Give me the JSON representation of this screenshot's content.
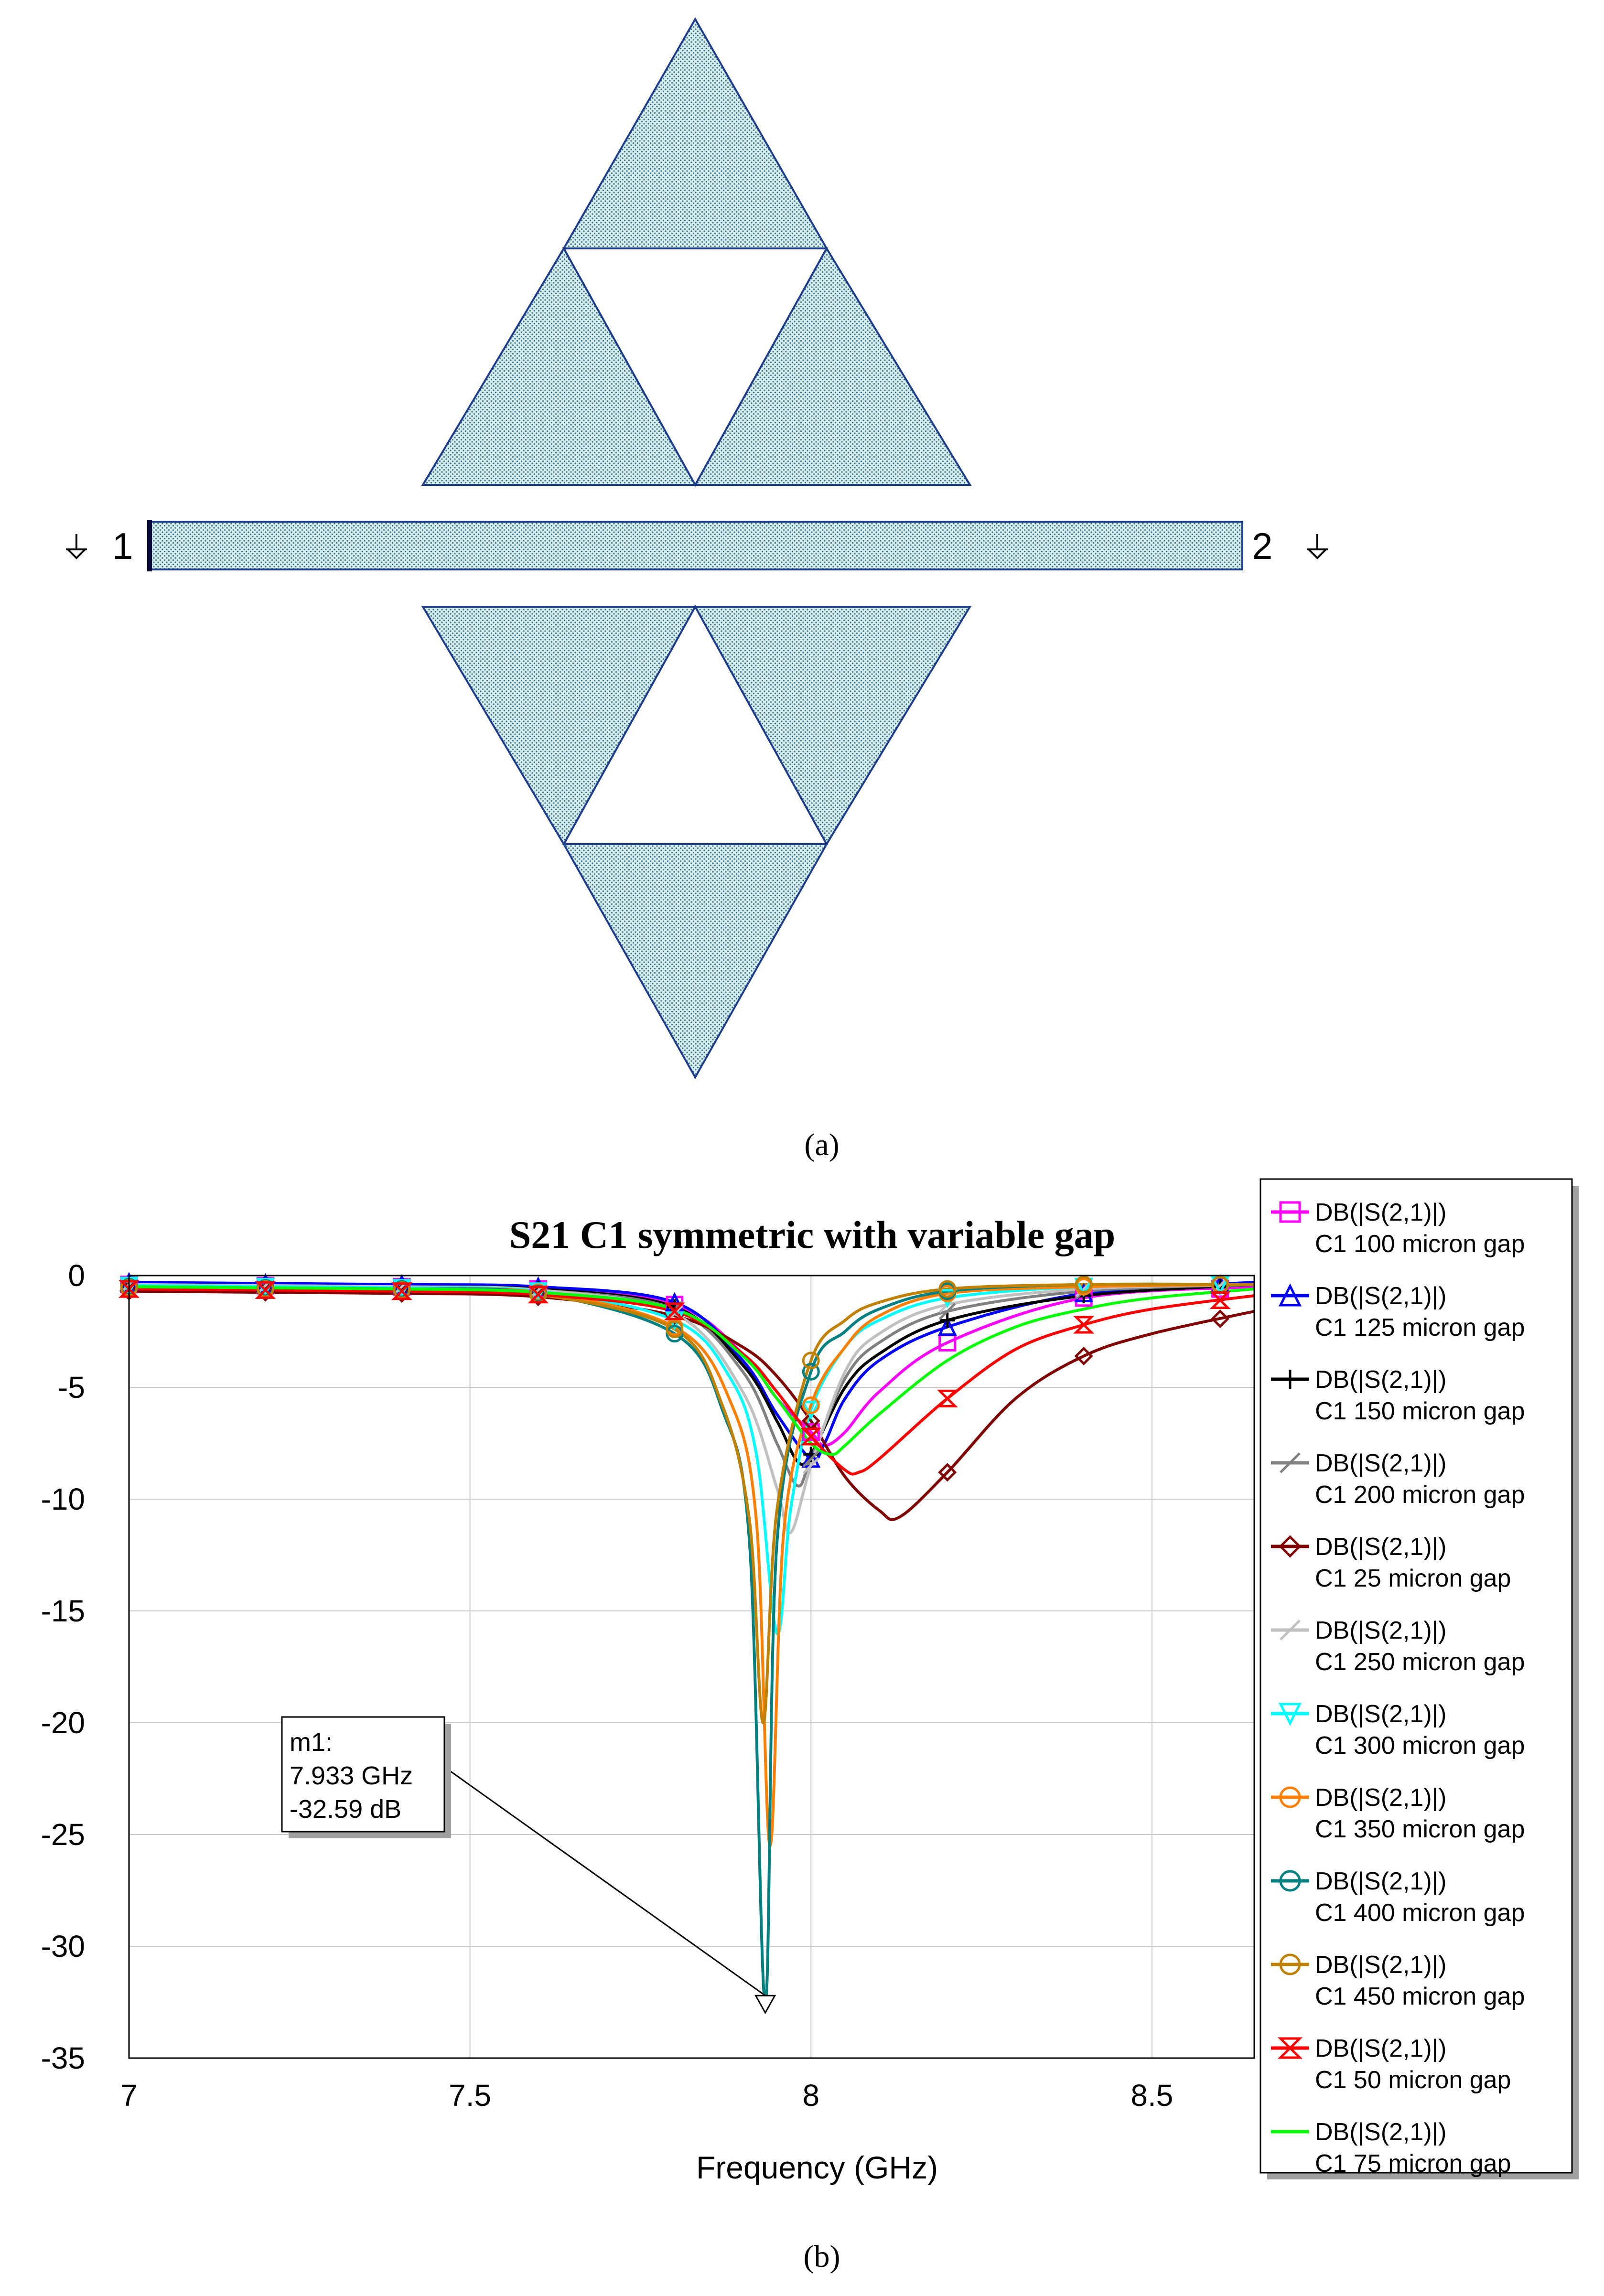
{
  "panel_a": {
    "caption": "(a)",
    "port_left": "1",
    "port_right": "2"
  },
  "panel_b": {
    "caption": "(b)"
  },
  "marker": {
    "name": "m1:",
    "freq_text": "7.933 GHz",
    "value_text": "-32.59 dB",
    "x": 7.933,
    "y": -32.59
  },
  "chart_data": {
    "type": "line",
    "title": "S21 C1 symmetric with variable gap",
    "xlabel": "Frequency (GHz)",
    "ylabel": "",
    "xlim": [
      7,
      8.65
    ],
    "ylim": [
      -35,
      0
    ],
    "xticks": [
      "7",
      "7.5",
      "8",
      "8.5"
    ],
    "yticks": [
      "0",
      "-5",
      "-10",
      "-15",
      "-20",
      "-25",
      "-30",
      "-35"
    ],
    "grid": true,
    "legend_position": "right",
    "series": [
      {
        "name": "DB(|S(2,1)|)",
        "label2": "C1 100 micron gap",
        "color": "#ff00ff",
        "marker": "square",
        "x": [
          7.0,
          7.2,
          7.4,
          7.6,
          7.8,
          7.9,
          7.95,
          8.0,
          8.02,
          8.05,
          8.1,
          8.2,
          8.4,
          8.65
        ],
        "y": [
          -0.4,
          -0.45,
          -0.5,
          -0.6,
          -1.3,
          -3.5,
          -5.5,
          -7.0,
          -7.6,
          -7.0,
          -5.2,
          -3.0,
          -1.0,
          -0.5
        ]
      },
      {
        "name": "DB(|S(2,1)|)",
        "label2": "C1 125 micron gap",
        "color": "#0000ff",
        "marker": "triangle",
        "x": [
          7.0,
          7.2,
          7.4,
          7.6,
          7.8,
          7.9,
          7.95,
          8.0,
          8.02,
          8.05,
          8.1,
          8.2,
          8.4,
          8.65
        ],
        "y": [
          -0.3,
          -0.35,
          -0.4,
          -0.5,
          -1.2,
          -3.8,
          -6.2,
          -8.2,
          -7.5,
          -5.5,
          -3.8,
          -2.3,
          -0.8,
          -0.3
        ]
      },
      {
        "name": "DB(|S(2,1)|)",
        "label2": "C1 150 micron gap",
        "color": "#000000",
        "marker": "plus",
        "x": [
          7.0,
          7.2,
          7.4,
          7.6,
          7.8,
          7.9,
          7.95,
          7.98,
          8.0,
          8.05,
          8.1,
          8.2,
          8.4,
          8.65
        ],
        "y": [
          -0.4,
          -0.45,
          -0.5,
          -0.6,
          -1.4,
          -4.0,
          -6.5,
          -8.3,
          -8.0,
          -5.0,
          -3.5,
          -2.0,
          -0.9,
          -0.4
        ]
      },
      {
        "name": "DB(|S(2,1)|)",
        "label2": "C1 200 micron gap",
        "color": "#808080",
        "marker": "slash",
        "x": [
          7.0,
          7.2,
          7.4,
          7.6,
          7.8,
          7.9,
          7.95,
          7.98,
          8.0,
          8.05,
          8.1,
          8.2,
          8.4,
          8.65
        ],
        "y": [
          -0.4,
          -0.45,
          -0.5,
          -0.65,
          -1.5,
          -4.3,
          -7.5,
          -9.4,
          -8.2,
          -4.6,
          -3.0,
          -1.6,
          -0.7,
          -0.4
        ]
      },
      {
        "name": "DB(|S(2,1)|)",
        "label2": "C1 25 micron gap",
        "color": "#800000",
        "marker": "diamond",
        "x": [
          7.0,
          7.2,
          7.4,
          7.6,
          7.8,
          7.9,
          7.95,
          8.0,
          8.05,
          8.1,
          8.13,
          8.2,
          8.3,
          8.4,
          8.5,
          8.65
        ],
        "y": [
          -0.7,
          -0.75,
          -0.8,
          -0.95,
          -1.8,
          -3.2,
          -4.5,
          -6.5,
          -9.0,
          -10.5,
          -10.8,
          -8.8,
          -5.5,
          -3.6,
          -2.6,
          -1.6
        ]
      },
      {
        "name": "DB(|S(2,1)|)",
        "label2": "C1 250 micron gap",
        "color": "#c0c0c0",
        "marker": "slash",
        "x": [
          7.0,
          7.2,
          7.4,
          7.6,
          7.8,
          7.9,
          7.95,
          7.97,
          8.0,
          8.05,
          8.1,
          8.2,
          8.4,
          8.65
        ],
        "y": [
          -0.4,
          -0.45,
          -0.5,
          -0.65,
          -1.7,
          -5.2,
          -9.5,
          -11.5,
          -8.5,
          -4.3,
          -2.6,
          -1.3,
          -0.6,
          -0.4
        ]
      },
      {
        "name": "DB(|S(2,1)|)",
        "label2": "C1 300 micron gap",
        "color": "#00ffff",
        "marker": "triangle-down",
        "x": [
          7.0,
          7.2,
          7.4,
          7.6,
          7.8,
          7.88,
          7.92,
          7.95,
          7.97,
          8.0,
          8.05,
          8.1,
          8.2,
          8.4,
          8.65
        ],
        "y": [
          -0.45,
          -0.5,
          -0.55,
          -0.7,
          -2.0,
          -4.5,
          -8.0,
          -16.0,
          -10.5,
          -6.0,
          -3.2,
          -2.0,
          -1.0,
          -0.5,
          -0.4
        ]
      },
      {
        "name": "DB(|S(2,1)|)",
        "label2": "C1 350 micron gap",
        "color": "#ff8000",
        "marker": "circle",
        "x": [
          7.0,
          7.2,
          7.4,
          7.6,
          7.8,
          7.88,
          7.92,
          7.94,
          7.96,
          8.0,
          8.05,
          8.1,
          8.2,
          8.4,
          8.65
        ],
        "y": [
          -0.5,
          -0.55,
          -0.6,
          -0.75,
          -2.3,
          -5.5,
          -11.0,
          -25.5,
          -11.5,
          -5.8,
          -3.2,
          -1.8,
          -0.8,
          -0.5,
          -0.4
        ]
      },
      {
        "name": "DB(|S(2,1)|)",
        "label2": "C1 400 micron gap",
        "color": "#008080",
        "marker": "circle",
        "x": [
          7.0,
          7.2,
          7.4,
          7.6,
          7.8,
          7.87,
          7.91,
          7.933,
          7.95,
          8.0,
          8.05,
          8.1,
          8.2,
          8.4,
          8.65
        ],
        "y": [
          -0.5,
          -0.55,
          -0.6,
          -0.8,
          -2.6,
          -6.0,
          -12.0,
          -32.59,
          -12.0,
          -4.3,
          -2.5,
          -1.5,
          -0.7,
          -0.4,
          -0.4
        ]
      },
      {
        "name": "DB(|S(2,1)|)",
        "label2": "C1 450 micron gap",
        "color": "#c08000",
        "marker": "circle",
        "x": [
          7.0,
          7.2,
          7.4,
          7.6,
          7.8,
          7.87,
          7.91,
          7.93,
          7.95,
          8.0,
          8.05,
          8.1,
          8.2,
          8.4,
          8.65
        ],
        "y": [
          -0.55,
          -0.6,
          -0.65,
          -0.85,
          -2.4,
          -5.8,
          -11.0,
          -20.0,
          -10.5,
          -3.8,
          -2.0,
          -1.2,
          -0.6,
          -0.4,
          -0.4
        ]
      },
      {
        "name": "DB(|S(2,1)|)",
        "label2": "C1 50 micron gap",
        "color": "#ff0000",
        "marker": "hourglass",
        "x": [
          7.0,
          7.2,
          7.4,
          7.6,
          7.8,
          7.9,
          7.95,
          8.0,
          8.05,
          8.07,
          8.1,
          8.2,
          8.3,
          8.4,
          8.5,
          8.65
        ],
        "y": [
          -0.6,
          -0.65,
          -0.7,
          -0.85,
          -1.6,
          -3.5,
          -5.2,
          -7.2,
          -8.7,
          -8.8,
          -8.2,
          -5.5,
          -3.3,
          -2.2,
          -1.5,
          -0.9
        ]
      },
      {
        "name": "DB(|S(2,1)|)",
        "label2": "C1 75 micron gap",
        "color": "#00ff00",
        "marker": "none",
        "x": [
          7.0,
          7.2,
          7.4,
          7.6,
          7.8,
          7.9,
          7.95,
          8.0,
          8.03,
          8.05,
          8.1,
          8.2,
          8.3,
          8.4,
          8.5,
          8.65
        ],
        "y": [
          -0.5,
          -0.55,
          -0.6,
          -0.75,
          -1.5,
          -3.6,
          -5.5,
          -7.5,
          -8.0,
          -7.6,
          -6.2,
          -3.8,
          -2.3,
          -1.5,
          -1.0,
          -0.6
        ]
      }
    ]
  }
}
